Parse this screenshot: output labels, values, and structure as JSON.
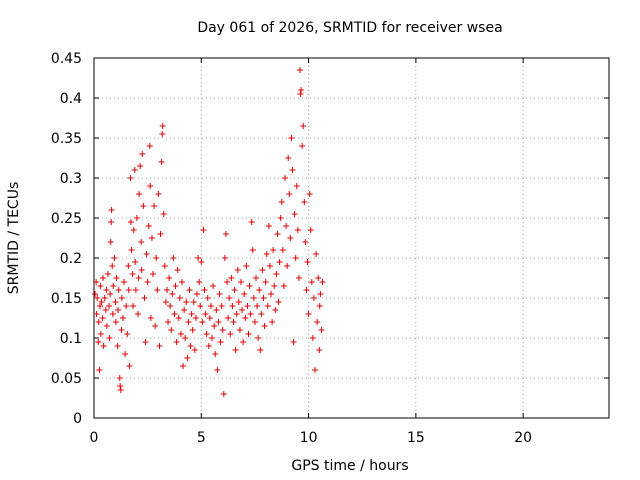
{
  "chart_data": {
    "type": "scatter",
    "title": "Day 061 of 2026, SRMTID for receiver wsea",
    "xlabel": "GPS time / hours",
    "ylabel": "SRMTID / TECUs",
    "xlim": [
      0,
      24
    ],
    "ylim": [
      0,
      0.45
    ],
    "grid": true,
    "xticks": [
      0,
      5,
      10,
      15,
      20
    ],
    "xtick_labels": [
      "0",
      "5",
      "10",
      "15",
      "20"
    ],
    "yticks": [
      0,
      0.05,
      0.1,
      0.15,
      0.2,
      0.25,
      0.3,
      0.35,
      0.4,
      0.45
    ],
    "ytick_labels": [
      "0",
      "0.05",
      "0.1",
      "0.15",
      "0.2",
      "0.25",
      "0.3",
      "0.35",
      "0.4",
      "0.45"
    ],
    "marker": "+",
    "color": "#e00000",
    "series": [
      {
        "name": "SRMTID",
        "points": [
          [
            0.05,
            0.155
          ],
          [
            0.1,
            0.17
          ],
          [
            0.12,
            0.13
          ],
          [
            0.15,
            0.15
          ],
          [
            0.2,
            0.095
          ],
          [
            0.22,
            0.12
          ],
          [
            0.25,
            0.06
          ],
          [
            0.28,
            0.14
          ],
          [
            0.3,
            0.165
          ],
          [
            0.32,
            0.105
          ],
          [
            0.35,
            0.145
          ],
          [
            0.4,
            0.125
          ],
          [
            0.42,
            0.175
          ],
          [
            0.45,
            0.09
          ],
          [
            0.5,
            0.15
          ],
          [
            0.55,
            0.135
          ],
          [
            0.58,
            0.16
          ],
          [
            0.6,
            0.115
          ],
          [
            0.65,
            0.18
          ],
          [
            0.7,
            0.14
          ],
          [
            0.72,
            0.1
          ],
          [
            0.75,
            0.155
          ],
          [
            0.78,
            0.22
          ],
          [
            0.8,
            0.245
          ],
          [
            0.82,
            0.26
          ],
          [
            0.85,
            0.19
          ],
          [
            0.88,
            0.13
          ],
          [
            0.9,
            0.165
          ],
          [
            0.95,
            0.2
          ],
          [
            1.0,
            0.145
          ],
          [
            1.02,
            0.12
          ],
          [
            1.05,
            0.175
          ],
          [
            1.1,
            0.09
          ],
          [
            1.12,
            0.135
          ],
          [
            1.15,
            0.16
          ],
          [
            1.2,
            0.05
          ],
          [
            1.22,
            0.04
          ],
          [
            1.25,
            0.035
          ],
          [
            1.28,
            0.11
          ],
          [
            1.3,
            0.15
          ],
          [
            1.35,
            0.125
          ],
          [
            1.4,
            0.17
          ],
          [
            1.45,
            0.08
          ],
          [
            1.5,
            0.14
          ],
          [
            1.55,
            0.105
          ],
          [
            1.6,
            0.19
          ],
          [
            1.62,
            0.16
          ],
          [
            1.65,
            0.065
          ],
          [
            1.7,
            0.3
          ],
          [
            1.72,
            0.245
          ],
          [
            1.75,
            0.21
          ],
          [
            1.8,
            0.18
          ],
          [
            1.82,
            0.14
          ],
          [
            1.85,
            0.235
          ],
          [
            1.9,
            0.31
          ],
          [
            1.92,
            0.195
          ],
          [
            1.95,
            0.16
          ],
          [
            2.0,
            0.25
          ],
          [
            2.05,
            0.13
          ],
          [
            2.08,
            0.175
          ],
          [
            2.1,
            0.28
          ],
          [
            2.15,
            0.315
          ],
          [
            2.2,
            0.22
          ],
          [
            2.22,
            0.185
          ],
          [
            2.25,
            0.33
          ],
          [
            2.3,
            0.265
          ],
          [
            2.35,
            0.15
          ],
          [
            2.4,
            0.095
          ],
          [
            2.45,
            0.205
          ],
          [
            2.5,
            0.17
          ],
          [
            2.55,
            0.24
          ],
          [
            2.6,
            0.34
          ],
          [
            2.62,
            0.29
          ],
          [
            2.65,
            0.125
          ],
          [
            2.7,
            0.225
          ],
          [
            2.75,
            0.18
          ],
          [
            2.8,
            0.265
          ],
          [
            2.85,
            0.115
          ],
          [
            2.9,
            0.2
          ],
          [
            2.95,
            0.16
          ],
          [
            3.0,
            0.28
          ],
          [
            3.05,
            0.09
          ],
          [
            3.1,
            0.23
          ],
          [
            3.15,
            0.32
          ],
          [
            3.18,
            0.355
          ],
          [
            3.2,
            0.365
          ],
          [
            3.25,
            0.255
          ],
          [
            3.3,
            0.19
          ],
          [
            3.35,
            0.145
          ],
          [
            3.4,
            0.16
          ],
          [
            3.45,
            0.12
          ],
          [
            3.5,
            0.175
          ],
          [
            3.55,
            0.14
          ],
          [
            3.6,
            0.11
          ],
          [
            3.65,
            0.155
          ],
          [
            3.7,
            0.2
          ],
          [
            3.75,
            0.13
          ],
          [
            3.8,
            0.165
          ],
          [
            3.85,
            0.095
          ],
          [
            3.9,
            0.185
          ],
          [
            3.95,
            0.125
          ],
          [
            4.0,
            0.15
          ],
          [
            4.05,
            0.105
          ],
          [
            4.1,
            0.17
          ],
          [
            4.15,
            0.065
          ],
          [
            4.2,
            0.135
          ],
          [
            4.25,
            0.1
          ],
          [
            4.3,
            0.145
          ],
          [
            4.35,
            0.075
          ],
          [
            4.4,
            0.12
          ],
          [
            4.45,
            0.16
          ],
          [
            4.5,
            0.09
          ],
          [
            4.55,
            0.13
          ],
          [
            4.6,
            0.11
          ],
          [
            4.65,
            0.145
          ],
          [
            4.7,
            0.085
          ],
          [
            4.75,
            0.125
          ],
          [
            4.8,
            0.155
          ],
          [
            4.85,
            0.2
          ],
          [
            4.9,
            0.17
          ],
          [
            4.95,
            0.14
          ],
          [
            5.0,
            0.195
          ],
          [
            5.05,
            0.12
          ],
          [
            5.1,
            0.235
          ],
          [
            5.15,
            0.16
          ],
          [
            5.2,
            0.13
          ],
          [
            5.25,
            0.105
          ],
          [
            5.3,
            0.15
          ],
          [
            5.35,
            0.09
          ],
          [
            5.4,
            0.125
          ],
          [
            5.45,
            0.14
          ],
          [
            5.5,
            0.1
          ],
          [
            5.55,
            0.165
          ],
          [
            5.6,
            0.115
          ],
          [
            5.65,
            0.08
          ],
          [
            5.7,
            0.135
          ],
          [
            5.75,
            0.06
          ],
          [
            5.8,
            0.12
          ],
          [
            5.85,
            0.155
          ],
          [
            5.9,
            0.095
          ],
          [
            5.95,
            0.14
          ],
          [
            6.0,
            0.11
          ],
          [
            6.05,
            0.03
          ],
          [
            6.1,
            0.2
          ],
          [
            6.15,
            0.23
          ],
          [
            6.2,
            0.17
          ],
          [
            6.25,
            0.125
          ],
          [
            6.3,
            0.15
          ],
          [
            6.35,
            0.105
          ],
          [
            6.4,
            0.175
          ],
          [
            6.45,
            0.14
          ],
          [
            6.5,
            0.12
          ],
          [
            6.55,
            0.16
          ],
          [
            6.6,
            0.085
          ],
          [
            6.65,
            0.13
          ],
          [
            6.7,
            0.185
          ],
          [
            6.75,
            0.145
          ],
          [
            6.8,
            0.11
          ],
          [
            6.85,
            0.17
          ],
          [
            6.9,
            0.135
          ],
          [
            6.95,
            0.095
          ],
          [
            7.0,
            0.155
          ],
          [
            7.05,
            0.125
          ],
          [
            7.1,
            0.19
          ],
          [
            7.15,
            0.14
          ],
          [
            7.2,
            0.105
          ],
          [
            7.25,
            0.165
          ],
          [
            7.3,
            0.13
          ],
          [
            7.35,
            0.245
          ],
          [
            7.4,
            0.21
          ],
          [
            7.45,
            0.15
          ],
          [
            7.5,
            0.12
          ],
          [
            7.55,
            0.175
          ],
          [
            7.6,
            0.14
          ],
          [
            7.65,
            0.1
          ],
          [
            7.7,
            0.16
          ],
          [
            7.75,
            0.085
          ],
          [
            7.8,
            0.13
          ],
          [
            7.85,
            0.185
          ],
          [
            7.9,
            0.15
          ],
          [
            7.95,
            0.115
          ],
          [
            8.0,
            0.17
          ],
          [
            8.05,
            0.205
          ],
          [
            8.1,
            0.14
          ],
          [
            8.15,
            0.24
          ],
          [
            8.2,
            0.19
          ],
          [
            8.25,
            0.155
          ],
          [
            8.3,
            0.12
          ],
          [
            8.35,
            0.21
          ],
          [
            8.4,
            0.165
          ],
          [
            8.45,
            0.135
          ],
          [
            8.5,
            0.18
          ],
          [
            8.55,
            0.23
          ],
          [
            8.6,
            0.145
          ],
          [
            8.65,
            0.195
          ],
          [
            8.7,
            0.25
          ],
          [
            8.75,
            0.27
          ],
          [
            8.8,
            0.21
          ],
          [
            8.85,
            0.165
          ],
          [
            8.9,
            0.3
          ],
          [
            8.95,
            0.24
          ],
          [
            9.0,
            0.19
          ],
          [
            9.05,
            0.325
          ],
          [
            9.1,
            0.28
          ],
          [
            9.15,
            0.225
          ],
          [
            9.2,
            0.35
          ],
          [
            9.25,
            0.31
          ],
          [
            9.3,
            0.095
          ],
          [
            9.35,
            0.255
          ],
          [
            9.4,
            0.2
          ],
          [
            9.45,
            0.29
          ],
          [
            9.5,
            0.235
          ],
          [
            9.55,
            0.175
          ],
          [
            9.6,
            0.435
          ],
          [
            9.62,
            0.405
          ],
          [
            9.65,
            0.41
          ],
          [
            9.7,
            0.34
          ],
          [
            9.75,
            0.365
          ],
          [
            9.8,
            0.27
          ],
          [
            9.85,
            0.22
          ],
          [
            9.9,
            0.16
          ],
          [
            9.95,
            0.195
          ],
          [
            10.0,
            0.13
          ],
          [
            10.05,
            0.28
          ],
          [
            10.1,
            0.235
          ],
          [
            10.15,
            0.17
          ],
          [
            10.2,
            0.1
          ],
          [
            10.25,
            0.15
          ],
          [
            10.3,
            0.06
          ],
          [
            10.35,
            0.205
          ],
          [
            10.4,
            0.12
          ],
          [
            10.45,
            0.175
          ],
          [
            10.5,
            0.085
          ],
          [
            10.52,
            0.14
          ],
          [
            10.55,
            0.155
          ],
          [
            10.6,
            0.11
          ],
          [
            10.65,
            0.17
          ]
        ]
      }
    ]
  }
}
